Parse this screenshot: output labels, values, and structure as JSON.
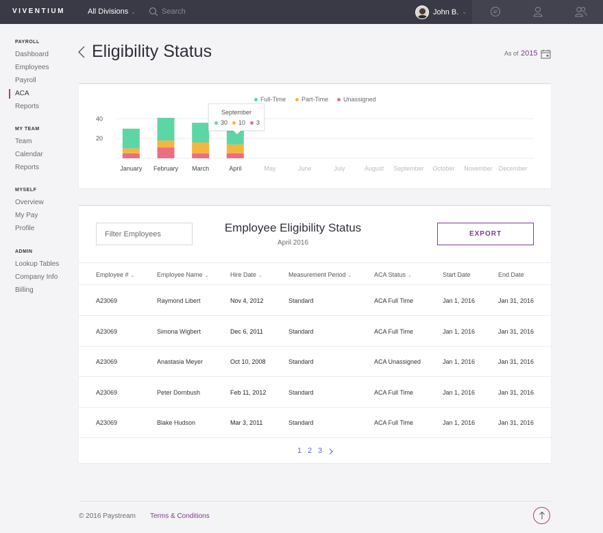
{
  "topbar": {
    "logo": "VIVENTIUM",
    "division": "All Divisions",
    "search_placeholder": "Search",
    "user_name": "John B."
  },
  "sidebar": {
    "sections": [
      {
        "title": "PAYROLL",
        "items": [
          "Dashboard",
          "Employees",
          "Payroll",
          "ACA",
          "Reports"
        ]
      },
      {
        "title": "MY TEAM",
        "items": [
          "Team",
          "Calendar",
          "Reports"
        ]
      },
      {
        "title": "MYSELF",
        "items": [
          "Overview",
          "My Pay",
          "Profile"
        ]
      },
      {
        "title": "ADMIN",
        "items": [
          "Lookup Tables",
          "Company Info",
          "Billing"
        ]
      }
    ],
    "active_item": "ACA"
  },
  "header": {
    "title": "Eligibility Status",
    "as_of_label": "As of",
    "year": "2015"
  },
  "chart_data": {
    "type": "bar",
    "stacked": true,
    "categories": [
      "January",
      "February",
      "March",
      "April",
      "May",
      "June",
      "July",
      "August",
      "September",
      "October",
      "November",
      "December"
    ],
    "series": [
      {
        "name": "Full-Time",
        "color": "#5dd6a6",
        "values": [
          20,
          23,
          20,
          17,
          null,
          null,
          null,
          null,
          null,
          null,
          null,
          null
        ]
      },
      {
        "name": "Part-Time",
        "color": "#f5b640",
        "values": [
          5,
          7,
          11,
          9,
          null,
          null,
          null,
          null,
          null,
          null,
          null,
          null
        ]
      },
      {
        "name": "Unassigned",
        "color": "#ec6d80",
        "values": [
          5,
          11,
          5,
          5,
          null,
          null,
          null,
          null,
          null,
          null,
          null,
          null
        ]
      }
    ],
    "y_ticks": [
      "40",
      "20"
    ],
    "ylim": [
      0,
      45
    ],
    "grid": true,
    "legend_position": "top",
    "active_categories": [
      "January",
      "February",
      "March",
      "April"
    ],
    "tooltip": {
      "month": "September",
      "values": [
        "30",
        "10",
        "3"
      ]
    }
  },
  "table": {
    "filter_placeholder": "Filter Employees",
    "title": "Employee Eligibility Status",
    "subtitle": "April 2016",
    "export_label": "EXPORT",
    "columns": [
      "Employee #",
      "Employee Name",
      "Hire Date",
      "Measurement Period",
      "ACA Status",
      "Start Date",
      "End Date"
    ],
    "rows": [
      [
        "A23069",
        "Raymond Libert",
        "Nov 4, 2012",
        "Standard",
        "ACA Full Time",
        "Jan 1, 2016",
        "Jan 31, 2016"
      ],
      [
        "A23069",
        "Simona Wigbert",
        "Dec 6, 2011",
        "Standard",
        "ACA Full Time",
        "Jan 1, 2016",
        "Jan 31, 2016"
      ],
      [
        "A23069",
        "Anastasia Meyer",
        "Oct 10, 2008",
        "Standard",
        "ACA Unassigned",
        "Jan 1, 2016",
        "Jan 31, 2016"
      ],
      [
        "A23069",
        "Peter Dornbush",
        "Feb 11, 2012",
        "Standard",
        "ACA Full Time",
        "Jan 1, 2016",
        "Jan 31, 2016"
      ],
      [
        "A23069",
        "Blake Hudson",
        "Mar 3, 2011",
        "Standard",
        "ACA Full Time",
        "Jan 1, 2016",
        "Jan 31, 2016"
      ]
    ],
    "pages": [
      "1",
      "2",
      "3"
    ]
  },
  "footer": {
    "copyright": "© 2016 Paystream",
    "terms": "Terms & Conditions"
  },
  "colors": {
    "topbar": "#3a3a46",
    "accent": "#7d3c8c",
    "active_marker": "#b03b7a",
    "link": "#5b6cb0"
  },
  "icons": [
    "search-icon",
    "chat-icon",
    "user-icon",
    "users-icon",
    "back-icon",
    "calendar-icon",
    "chevron-right-icon",
    "arrow-up-icon"
  ]
}
